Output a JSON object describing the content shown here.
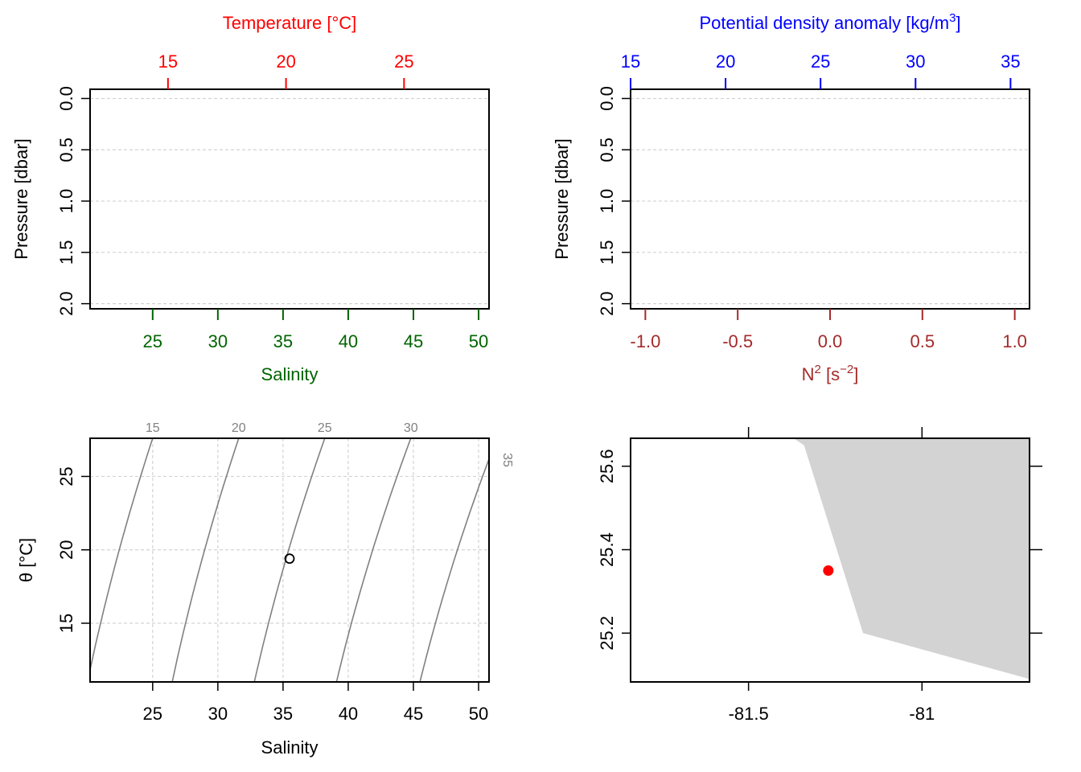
{
  "colors": {
    "temperature": "#ff0000",
    "salinity": "#006400",
    "density": "#0000ff",
    "n2": "#a52a2a",
    "isopycnal": "#808080",
    "grid": "#d3d3d3",
    "land": "#d3d3d3",
    "station": "#ff0000"
  },
  "chart_data": [
    {
      "panel": "profile-temperature-salinity",
      "type": "line",
      "top_axis": {
        "label": "Temperature [°C]",
        "ticks": [
          15,
          20,
          25
        ],
        "range": [
          11.7,
          28.6
        ]
      },
      "bottom_axis": {
        "label": "Salinity",
        "ticks": [
          25,
          30,
          35,
          40,
          45,
          50
        ],
        "range": [
          20.2,
          50.8
        ]
      },
      "y_axis": {
        "label": "Pressure [dbar]",
        "ticks": [
          "0.0",
          "0.5",
          "1.0",
          "1.5",
          "2.0"
        ],
        "tick_values": [
          0,
          0.5,
          1,
          1.5,
          2
        ],
        "range": [
          -0.09,
          2.05
        ],
        "reversed": true
      },
      "grid": "horizontal dashed",
      "series": []
    },
    {
      "panel": "profile-density-n2",
      "type": "line",
      "top_axis": {
        "label": "Potential density anomaly [kg/m³]",
        "ticks": [
          15,
          20,
          25,
          30,
          35
        ],
        "range": [
          15.0,
          36.0
        ]
      },
      "bottom_axis": {
        "label": "N² [s⁻²]",
        "ticks": [
          "-1.0",
          "-0.5",
          "0.0",
          "0.5",
          "1.0"
        ],
        "tick_values": [
          -1,
          -0.5,
          0,
          0.5,
          1
        ],
        "range": [
          -1.08,
          1.08
        ]
      },
      "y_axis": {
        "label": "Pressure [dbar]",
        "ticks": [
          "0.0",
          "0.5",
          "1.0",
          "1.5",
          "2.0"
        ],
        "tick_values": [
          0,
          0.5,
          1,
          1.5,
          2
        ],
        "range": [
          -0.09,
          2.05
        ],
        "reversed": true
      },
      "grid": "horizontal dashed",
      "series": []
    },
    {
      "panel": "ts-diagram",
      "type": "scatter",
      "x_axis": {
        "label": "Salinity",
        "ticks": [
          25,
          30,
          35,
          40,
          45,
          50
        ],
        "range": [
          20.2,
          50.8
        ]
      },
      "y_axis": {
        "label": "θ [°C]",
        "ticks": [
          15,
          20,
          25
        ],
        "range": [
          11.0,
          27.6
        ]
      },
      "grid": "dashed",
      "isopycnals": [
        {
          "label": "15",
          "s_top": 25.0,
          "s_bottom": 20.0
        },
        {
          "label": "20",
          "s_top": 31.6,
          "s_bottom": 26.5
        },
        {
          "label": "25",
          "s_top": 38.2,
          "s_bottom": 32.8
        },
        {
          "label": "30",
          "s_top": 44.8,
          "s_bottom": 39.1
        },
        {
          "label": "35",
          "s_top": 51.4,
          "s_bottom": 45.5
        }
      ],
      "points": [
        {
          "x": 35.5,
          "y": 19.4
        }
      ]
    },
    {
      "panel": "station-map",
      "type": "scatter",
      "x_axis": {
        "ticks": [
          "-81.5",
          "-81"
        ],
        "tick_values": [
          -81.5,
          -81.0
        ],
        "range": [
          -81.84,
          -80.69
        ]
      },
      "y_axis": {
        "ticks": [
          "25.2",
          "25.4",
          "25.6"
        ],
        "tick_values": [
          25.2,
          25.4,
          25.6
        ],
        "range": [
          25.083,
          25.667
        ]
      },
      "land_polygon": [
        [
          -81.37,
          25.667
        ],
        [
          -81.34,
          25.65
        ],
        [
          -81.17,
          25.2
        ],
        [
          -80.69,
          25.09
        ],
        [
          -80.69,
          25.667
        ]
      ],
      "points": [
        {
          "lon": -81.27,
          "lat": 25.35
        }
      ]
    }
  ]
}
